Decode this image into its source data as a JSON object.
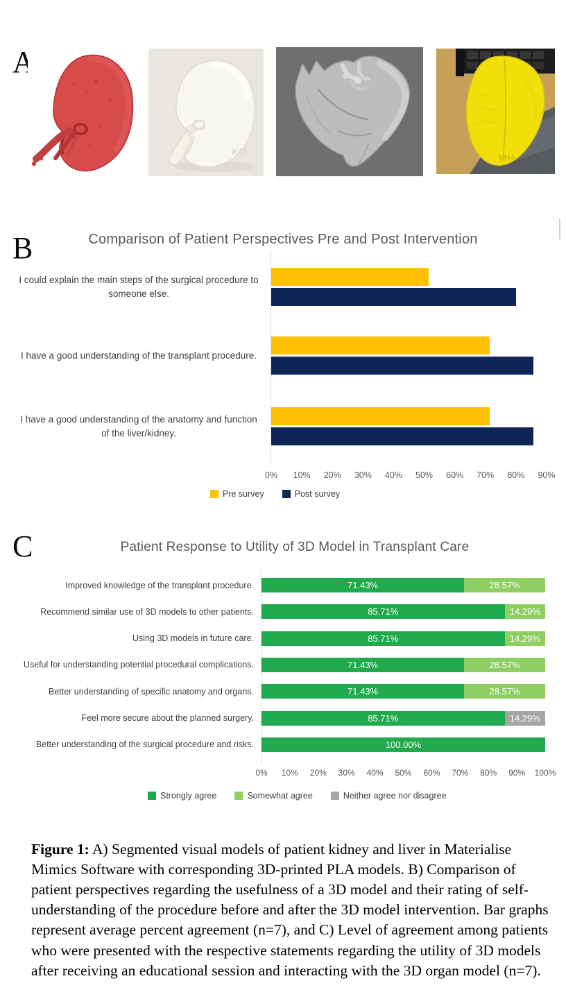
{
  "panel_labels": {
    "a": "A",
    "b": "B",
    "c": "C"
  },
  "panel_a": {
    "images": [
      {
        "name": "segmented-kidney-render",
        "alt": "red segmented kidney 3D render"
      },
      {
        "name": "printed-kidney-model",
        "alt": "white 3D-printed PLA kidney",
        "embossed_text": "KO"
      },
      {
        "name": "segmented-liver-render",
        "alt": "gray segmented liver 3D render"
      },
      {
        "name": "printed-liver-model",
        "alt": "yellow 3D-printed PLA liver",
        "embossed_text": "MH"
      }
    ]
  },
  "chart_data": [
    {
      "panel": "B",
      "type": "bar",
      "orientation": "horizontal",
      "title": "Comparison of Patient Perspectives Pre and Post Intervention",
      "categories": [
        "I could explain the main steps of the surgical procedure to someone else.",
        "I have a good understanding of the transplant procedure.",
        "I have a good understanding of the anatomy and function of the liver/kidney."
      ],
      "series": [
        {
          "name": "Pre survey",
          "color": "#FFC000",
          "values": [
            51.43,
            71.43,
            71.43
          ]
        },
        {
          "name": "Post survey",
          "color": "#0F2557",
          "values": [
            80.0,
            85.71,
            85.71
          ]
        }
      ],
      "xlim": [
        0,
        90
      ],
      "xticks": [
        "0%",
        "10%",
        "20%",
        "30%",
        "40%",
        "50%",
        "60%",
        "70%",
        "80%",
        "90%"
      ],
      "grid": false,
      "legend_position": "bottom"
    },
    {
      "panel": "C",
      "type": "bar",
      "stacked": true,
      "orientation": "horizontal",
      "title": "Patient Response to Utility of 3D Model in Transplant Care",
      "categories": [
        "Improved knowledge of the transplant procedure.",
        "Recommend similar use of 3D models to other patients.",
        "Using 3D models in future care.",
        "Useful for understanding potential procedural complications.",
        "Better understanding of specific anatomy and organs.",
        "Feel more secure about the planned surgery.",
        "Better understanding of the surgical procedure and risks."
      ],
      "series": [
        {
          "name": "Strongly agree",
          "color": "#21A94D",
          "values": [
            71.43,
            85.71,
            85.71,
            71.43,
            71.43,
            85.71,
            100.0
          ]
        },
        {
          "name": "Somewhat agree",
          "color": "#8FCE63",
          "values": [
            28.57,
            14.29,
            14.29,
            28.57,
            28.57,
            0,
            0
          ]
        },
        {
          "name": "Neither agree nor disagree",
          "color": "#A6A6A6",
          "values": [
            0,
            0,
            0,
            0,
            0,
            14.29,
            0
          ]
        }
      ],
      "data_labels": [
        "71.43%",
        "85.71%",
        "85.71%",
        "71.43%",
        "71.43%",
        "85.71%",
        "100.00%",
        "28.57%",
        "14.29%",
        "14.29%",
        "28.57%",
        "28.57%",
        "14.29%"
      ],
      "xlim": [
        0,
        100
      ],
      "xticks": [
        "0%",
        "10%",
        "20%",
        "30%",
        "40%",
        "50%",
        "60%",
        "70%",
        "80%",
        "90%",
        "100%"
      ],
      "grid": false,
      "legend_position": "bottom"
    }
  ],
  "caption": {
    "prefix": "Figure 1:",
    "body": " A) Segmented visual models of patient kidney and liver in Materialise Mimics Software with corresponding 3D-printed PLA models. B) Comparison of patient perspectives regarding the usefulness of a 3D model and their rating of self-understanding of the procedure before and after the 3D model intervention. Bar graphs represent average percent agreement (n=7), and C) Level of agreement among patients who were presented with the respective statements regarding the utility of 3D models after receiving an educational session and interacting with the 3D organ model (n=7)."
  }
}
